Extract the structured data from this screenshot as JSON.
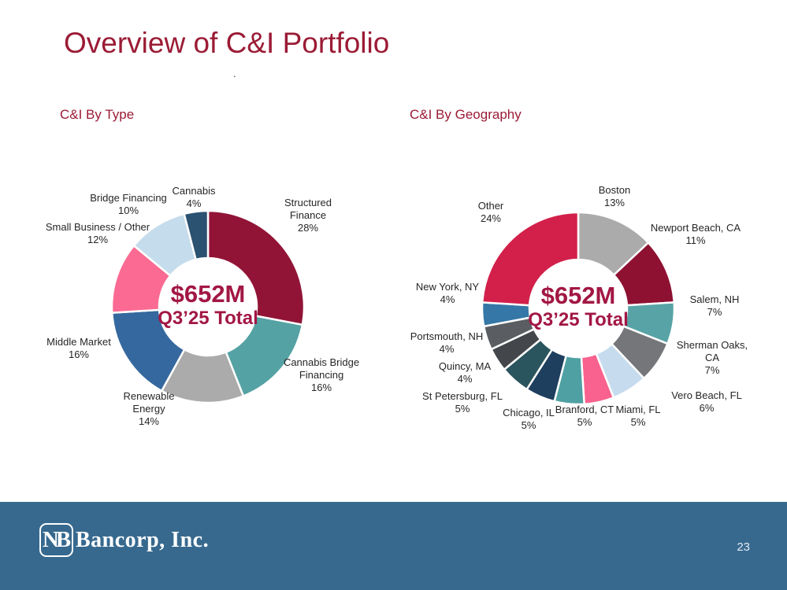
{
  "slide": {
    "title": "Overview of C&I Portfolio",
    "stray_dot": "."
  },
  "colors": {
    "title_maroon": "#9B1B35",
    "center_maroon": "#A21744",
    "footer_blue": "#37698F"
  },
  "chart_data": [
    {
      "type": "pie",
      "subtype": "donut",
      "title": "C&I By Type",
      "center_value": "$652M",
      "center_label": "Q3’25 Total",
      "total": 100,
      "start_angle_deg": 0,
      "direction": "clockwise",
      "slices": [
        {
          "label": "Structured Finance",
          "value": 28,
          "pct_label": "28%",
          "color": "#911436",
          "label_lines": [
            "Structured",
            "Finance",
            "28%"
          ]
        },
        {
          "label": "Cannabis Bridge Financing",
          "value": 16,
          "pct_label": "16%",
          "color": "#55A2A4",
          "label_lines": [
            "Cannabis Bridge",
            "Financing",
            "16%"
          ]
        },
        {
          "label": "Renewable Energy",
          "value": 14,
          "pct_label": "14%",
          "color": "#ABABAB",
          "label_lines": [
            "Renewable",
            "Energy",
            "14%"
          ]
        },
        {
          "label": "Middle Market",
          "value": 16,
          "pct_label": "16%",
          "color": "#35689E",
          "label_lines": [
            "Middle Market",
            "16%"
          ]
        },
        {
          "label": "Small Business / Other",
          "value": 12,
          "pct_label": "12%",
          "color": "#FA6A92",
          "label_lines": [
            "Small Business / Other",
            "12%"
          ]
        },
        {
          "label": "Bridge Financing",
          "value": 10,
          "pct_label": "10%",
          "color": "#C5DCEC",
          "label_lines": [
            "Bridge Financing",
            "10%"
          ]
        },
        {
          "label": "Cannabis",
          "value": 4,
          "pct_label": "4%",
          "color": "#2B5270",
          "label_lines": [
            "Cannabis",
            "4%"
          ]
        }
      ]
    },
    {
      "type": "pie",
      "subtype": "donut",
      "title": "C&I By Geography",
      "center_value": "$652M",
      "center_label": "Q3’25 Total",
      "total": 100,
      "start_angle_deg": 0,
      "direction": "clockwise",
      "slices": [
        {
          "label": "Boston",
          "value": 13,
          "pct_label": "13%",
          "color": "#ABABAB",
          "label_lines": [
            "Boston",
            "13%"
          ]
        },
        {
          "label": "Newport Beach, CA",
          "value": 11,
          "pct_label": "11%",
          "color": "#8E1132",
          "label_lines": [
            "Newport Beach, CA",
            "11%"
          ]
        },
        {
          "label": "Salem, NH",
          "value": 7,
          "pct_label": "7%",
          "color": "#58A3A5",
          "label_lines": [
            "Salem, NH",
            "7%"
          ]
        },
        {
          "label": "Sherman Oaks, CA",
          "value": 7,
          "pct_label": "7%",
          "color": "#747679",
          "label_lines": [
            "Sherman Oaks,",
            "CA",
            "7%"
          ]
        },
        {
          "label": "Vero Beach, FL",
          "value": 6,
          "pct_label": "6%",
          "color": "#C6DCEE",
          "label_lines": [
            "Vero Beach, FL",
            "6%"
          ]
        },
        {
          "label": "Miami, FL",
          "value": 5,
          "pct_label": "5%",
          "color": "#F9628E",
          "label_lines": [
            "Miami, FL",
            "5%"
          ]
        },
        {
          "label": "Branford, CT",
          "value": 5,
          "pct_label": "5%",
          "color": "#4FA0A3",
          "label_lines": [
            "Branford, CT",
            "5%"
          ]
        },
        {
          "label": "Chicago, IL",
          "value": 5,
          "pct_label": "5%",
          "color": "#1F3F5E",
          "label_lines": [
            "Chicago, IL",
            "5%"
          ]
        },
        {
          "label": "St Petersburg, FL",
          "value": 5,
          "pct_label": "5%",
          "color": "#2B555E",
          "label_lines": [
            "St Petersburg, FL",
            "5%"
          ]
        },
        {
          "label": "Quincy, MA",
          "value": 4,
          "pct_label": "4%",
          "color": "#43474B",
          "label_lines": [
            "Quincy, MA",
            "4%"
          ]
        },
        {
          "label": "Portsmouth, NH",
          "value": 4,
          "pct_label": "4%",
          "color": "#5A5E62",
          "label_lines": [
            "Portsmouth, NH",
            "4%"
          ]
        },
        {
          "label": "New York, NY",
          "value": 4,
          "pct_label": "4%",
          "color": "#3577A6",
          "label_lines": [
            "New York, NY",
            "4%"
          ]
        },
        {
          "label": "Other",
          "value": 24,
          "pct_label": "24%",
          "color": "#D2204A",
          "label_lines": [
            "Other",
            "24%"
          ]
        }
      ]
    }
  ],
  "footer": {
    "logo_monogram": "NB",
    "logo_text": "Bancorp, Inc.",
    "page_number": "23"
  }
}
